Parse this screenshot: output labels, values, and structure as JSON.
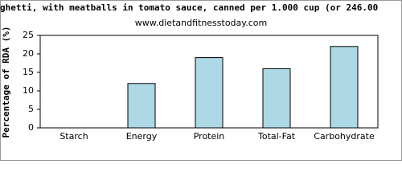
{
  "chart_data": {
    "type": "bar",
    "title": "ghetti, with meatballs in tomato sauce, canned per 1.000 cup (or 246.00",
    "subtitle": "www.dietandfitnesstoday.com",
    "ylabel": "Percentage of RDA (%)",
    "categories": [
      "Starch",
      "Energy",
      "Protein",
      "Total-Fat",
      "Carbohydrate"
    ],
    "values": [
      0,
      12,
      19,
      16,
      22
    ],
    "color": "#add8e6",
    "ylim": [
      0,
      25
    ],
    "yticks": [
      0,
      5,
      10,
      15,
      20,
      25
    ],
    "grid": false
  }
}
